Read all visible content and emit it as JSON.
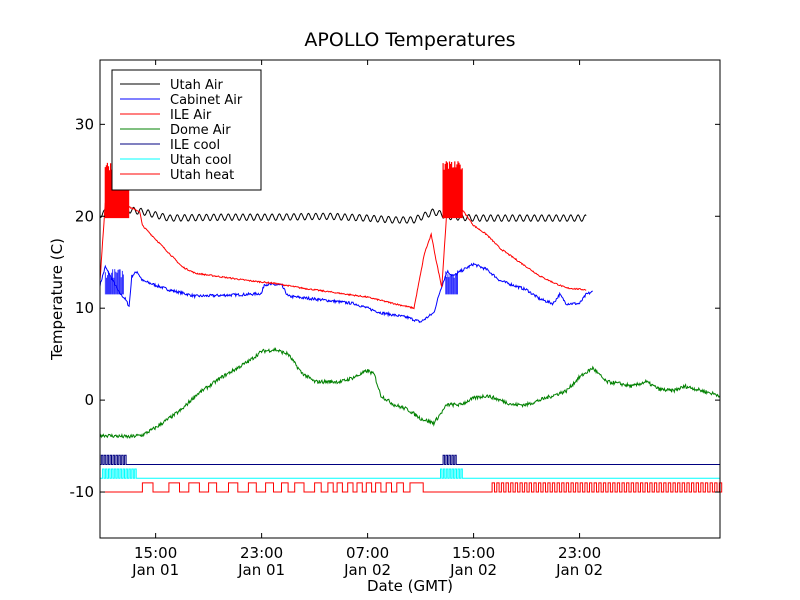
{
  "chart_data": {
    "type": "line",
    "title": "APOLLO Temperatures",
    "xlabel": "Date (GMT)",
    "ylabel": "Temperature (C)",
    "xlim_hours": [
      10.8,
      57.6
    ],
    "ylim": [
      -15,
      37
    ],
    "yticks": [
      {
        "value": 30,
        "label": "30"
      },
      {
        "value": 20,
        "label": "20"
      },
      {
        "value": 10,
        "label": "10"
      },
      {
        "value": 0,
        "label": "0"
      },
      {
        "value": -10,
        "label": "-10"
      }
    ],
    "xticks": [
      {
        "hours": 15,
        "label1": "15:00",
        "label2": "Jan 01"
      },
      {
        "hours": 23,
        "label1": "23:00",
        "label2": "Jan 01"
      },
      {
        "hours": 31,
        "label1": "07:00",
        "label2": "Jan 02"
      },
      {
        "hours": 39,
        "label1": "15:00",
        "label2": "Jan 02"
      },
      {
        "hours": 47,
        "label1": "23:00",
        "label2": "Jan 02"
      }
    ],
    "legend_position": "top-left",
    "series": [
      {
        "name": "Utah Air",
        "color": "#000000",
        "points": [
          [
            10.8,
            20.2
          ],
          [
            11.5,
            20.5
          ],
          [
            12.5,
            20.8
          ],
          [
            14,
            20.5
          ],
          [
            16,
            19.8
          ],
          [
            20,
            19.9
          ],
          [
            24,
            19.9
          ],
          [
            28,
            20.0
          ],
          [
            31,
            19.8
          ],
          [
            33,
            19.6
          ],
          [
            34.5,
            19.6
          ],
          [
            36,
            20.5
          ],
          [
            37,
            20.0
          ],
          [
            39,
            19.8
          ],
          [
            45,
            19.8
          ],
          [
            47.5,
            19.8
          ]
        ],
        "oscillation": 0.35
      },
      {
        "name": "Cabinet Air",
        "color": "#0000ff",
        "points": [
          [
            10.8,
            12.5
          ],
          [
            11.2,
            14.5
          ],
          [
            12.2,
            11.8
          ],
          [
            12.7,
            11.0
          ],
          [
            13.0,
            10.2
          ],
          [
            13.2,
            13.5
          ],
          [
            13.6,
            14.0
          ],
          [
            14,
            13.0
          ],
          [
            16,
            12.0
          ],
          [
            18,
            11.3
          ],
          [
            22,
            11.5
          ],
          [
            23,
            11.6
          ],
          [
            23.2,
            12.6
          ],
          [
            24.5,
            12.5
          ],
          [
            25,
            11.3
          ],
          [
            27,
            11.0
          ],
          [
            30,
            10.5
          ],
          [
            32,
            9.5
          ],
          [
            34,
            9.0
          ],
          [
            35,
            8.5
          ],
          [
            36.0,
            9.5
          ],
          [
            36.5,
            12.0
          ],
          [
            37,
            14.0
          ],
          [
            37.5,
            13.5
          ],
          [
            38,
            14.0
          ],
          [
            39,
            14.8
          ],
          [
            40,
            14.2
          ],
          [
            41,
            13.0
          ],
          [
            43,
            12.0
          ],
          [
            44,
            11.0
          ],
          [
            45,
            10.5
          ],
          [
            45.5,
            11.5
          ],
          [
            46,
            10.5
          ],
          [
            47,
            10.5
          ],
          [
            47.5,
            11.5
          ],
          [
            48,
            11.8
          ]
        ],
        "noise": 0.3
      },
      {
        "name": "ILE Air",
        "color": "#ff0000",
        "points": [
          [
            10.8,
            13.0
          ],
          [
            11.2,
            21.5
          ],
          [
            12.0,
            22.5
          ],
          [
            13,
            21.0
          ],
          [
            13.8,
            20.5
          ],
          [
            14,
            19.0
          ],
          [
            15,
            17.5
          ],
          [
            16,
            16.0
          ],
          [
            17,
            14.5
          ],
          [
            18,
            13.8
          ],
          [
            22,
            13.0
          ],
          [
            24,
            12.7
          ],
          [
            26,
            12.2
          ],
          [
            28,
            11.8
          ],
          [
            31,
            11.2
          ],
          [
            33,
            10.5
          ],
          [
            34.5,
            10.0
          ],
          [
            35.3,
            16.0
          ],
          [
            35.8,
            18.0
          ],
          [
            36.2,
            15.0
          ],
          [
            36.6,
            12.3
          ],
          [
            37,
            21.0
          ],
          [
            38,
            21.0
          ],
          [
            39,
            19.0
          ],
          [
            40,
            18.0
          ],
          [
            41,
            16.5
          ],
          [
            42,
            15.5
          ],
          [
            43,
            14.5
          ],
          [
            44,
            13.5
          ],
          [
            45,
            12.8
          ],
          [
            46,
            12.2
          ],
          [
            47.5,
            12.0
          ]
        ],
        "noise": 0.15
      },
      {
        "name": "Dome Air",
        "color": "#008000",
        "points": [
          [
            10.8,
            -3.8
          ],
          [
            13,
            -4.0
          ],
          [
            14,
            -3.8
          ],
          [
            15,
            -3.0
          ],
          [
            16,
            -2.0
          ],
          [
            17,
            -1.0
          ],
          [
            18,
            0.5
          ],
          [
            20,
            2.5
          ],
          [
            22,
            4.2
          ],
          [
            23,
            5.3
          ],
          [
            24,
            5.5
          ],
          [
            25,
            5.0
          ],
          [
            26,
            3.0
          ],
          [
            27,
            2.0
          ],
          [
            29,
            2.0
          ],
          [
            30,
            2.5
          ],
          [
            31,
            3.2
          ],
          [
            31.5,
            2.8
          ],
          [
            32,
            0.5
          ],
          [
            33,
            -0.5
          ],
          [
            34,
            -1.0
          ],
          [
            35,
            -2.0
          ],
          [
            36,
            -2.5
          ],
          [
            37,
            -0.5
          ],
          [
            38,
            -0.5
          ],
          [
            39,
            0.2
          ],
          [
            40,
            0.5
          ],
          [
            41,
            0.0
          ],
          [
            42,
            -0.5
          ],
          [
            43,
            -0.5
          ],
          [
            44,
            0.0
          ],
          [
            45,
            0.5
          ],
          [
            46,
            1.0
          ],
          [
            47,
            2.5
          ],
          [
            48,
            3.5
          ],
          [
            49,
            2.0
          ],
          [
            50,
            1.8
          ],
          [
            51,
            1.5
          ],
          [
            52,
            2.0
          ],
          [
            53,
            1.2
          ],
          [
            54,
            1.0
          ],
          [
            55,
            1.5
          ],
          [
            57.6,
            0.5
          ]
        ],
        "noise": 0.4
      },
      {
        "name": "ILE cool",
        "color": "#000080",
        "baseline": -7.0,
        "high": -6.0,
        "bursts": [
          [
            10.9,
            12.8
          ],
          [
            36.7,
            37.8
          ]
        ]
      },
      {
        "name": "Utah cool",
        "color": "#00ffff",
        "baseline": -8.5,
        "high": -7.5,
        "bursts": [
          [
            11.0,
            13.5
          ],
          [
            36.5,
            38.2
          ]
        ]
      },
      {
        "name": "Utah heat",
        "color": "#ff0000",
        "baseline": -10.0,
        "high": -9.0,
        "pulses": [
          [
            14.0,
            14.8
          ],
          [
            16.0,
            16.8
          ],
          [
            17.5,
            18.3
          ],
          [
            19.0,
            19.6
          ],
          [
            20.5,
            21.2
          ],
          [
            22.0,
            22.6
          ],
          [
            23.3,
            23.9
          ],
          [
            24.5,
            25.0
          ],
          [
            25.5,
            26.2
          ],
          [
            27.0,
            27.5
          ],
          [
            28.0,
            28.4
          ],
          [
            28.7,
            29.1
          ],
          [
            29.5,
            29.9
          ],
          [
            30.2,
            30.6
          ],
          [
            30.9,
            31.3
          ],
          [
            31.6,
            32.0
          ],
          [
            32.4,
            32.8
          ],
          [
            33.2,
            33.7
          ],
          [
            34.2,
            35.2
          ]
        ],
        "dense_start": 40.4,
        "dense_end": 57.6,
        "dense_period": 0.35
      }
    ]
  }
}
